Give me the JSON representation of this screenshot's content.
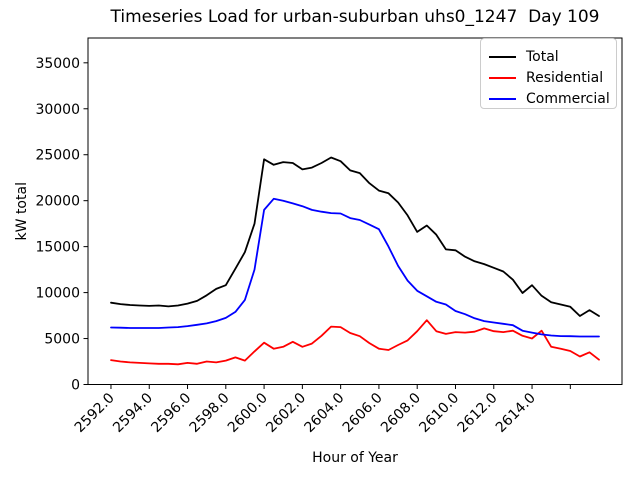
{
  "chart_data": {
    "type": "line",
    "title": "Timeseries Load for urban-suburban uhs0_1247  Day 109",
    "xlabel": "Hour of Year",
    "ylabel": "kW total",
    "grid": false,
    "legend_position": "upper right",
    "xlim": [
      2590.8,
      2618.7
    ],
    "ylim": [
      0,
      37700
    ],
    "xticks": {
      "values": [
        2592,
        2594,
        2596,
        2598,
        2600,
        2602,
        2604,
        2606,
        2608,
        2610,
        2612,
        2614,
        2616
      ],
      "labels": [
        "2592.0",
        "2594.0",
        "2596.0",
        "2598.0",
        "2600.0",
        "2602.0",
        "2604.0",
        "2606.0",
        "2608.0",
        "2610.0",
        "2612.0",
        "2614.0",
        ""
      ]
    },
    "yticks": {
      "values": [
        0,
        5000,
        10000,
        15000,
        20000,
        25000,
        30000,
        35000
      ],
      "labels": [
        "0",
        "5000",
        "10000",
        "15000",
        "20000",
        "25000",
        "30000",
        "35000"
      ]
    },
    "x": [
      2592.0,
      2592.5,
      2593.0,
      2593.5,
      2594.0,
      2594.5,
      2595.0,
      2595.5,
      2596.0,
      2596.5,
      2597.0,
      2597.5,
      2598.0,
      2598.5,
      2599.0,
      2599.5,
      2600.0,
      2600.5,
      2601.0,
      2601.5,
      2602.0,
      2602.5,
      2603.0,
      2603.5,
      2604.0,
      2604.5,
      2605.0,
      2605.5,
      2606.0,
      2606.5,
      2607.0,
      2607.5,
      2608.0,
      2608.5,
      2609.0,
      2609.5,
      2610.0,
      2610.5,
      2611.0,
      2611.5,
      2612.0,
      2612.5,
      2613.0,
      2613.5,
      2614.0,
      2614.5,
      2615.0,
      2615.5,
      2616.0,
      2616.5,
      2617.0,
      2617.5
    ],
    "series": [
      {
        "name": "Total",
        "color": "#000000",
        "values": [
          8900,
          8750,
          8650,
          8600,
          8550,
          8600,
          8500,
          8600,
          8800,
          9100,
          9700,
          10400,
          10800,
          12600,
          14400,
          17500,
          24500,
          23900,
          24200,
          24100,
          23400,
          23600,
          24100,
          24700,
          24300,
          23300,
          23000,
          21900,
          21100,
          20800,
          19800,
          18400,
          16600,
          17300,
          16300,
          14700,
          14600,
          13900,
          13400,
          13100,
          12700,
          12300,
          11400,
          9950,
          10800,
          9650,
          8950,
          8700,
          8450,
          7450,
          8100,
          7450
        ]
      },
      {
        "name": "Residential",
        "color": "#ff0000",
        "values": [
          2650,
          2500,
          2400,
          2350,
          2300,
          2250,
          2250,
          2200,
          2350,
          2250,
          2500,
          2400,
          2600,
          2950,
          2600,
          3600,
          4550,
          3900,
          4100,
          4650,
          4100,
          4450,
          5300,
          6300,
          6250,
          5600,
          5250,
          4500,
          3900,
          3750,
          4300,
          4800,
          5800,
          7000,
          5800,
          5500,
          5700,
          5650,
          5750,
          6100,
          5800,
          5700,
          5850,
          5300,
          5000,
          5850,
          4100,
          3900,
          3650,
          3050,
          3500,
          2700
        ]
      },
      {
        "name": "Commercial",
        "color": "#0000ff",
        "values": [
          6200,
          6180,
          6150,
          6150,
          6150,
          6150,
          6200,
          6250,
          6350,
          6500,
          6650,
          6900,
          7250,
          7900,
          9200,
          12500,
          19000,
          20200,
          20000,
          19700,
          19400,
          19000,
          18800,
          18650,
          18600,
          18100,
          17900,
          17400,
          16900,
          15000,
          12900,
          11300,
          10200,
          9600,
          9000,
          8700,
          8000,
          7650,
          7200,
          6900,
          6750,
          6600,
          6450,
          5850,
          5650,
          5450,
          5330,
          5270,
          5250,
          5220,
          5220,
          5220
        ]
      }
    ]
  }
}
